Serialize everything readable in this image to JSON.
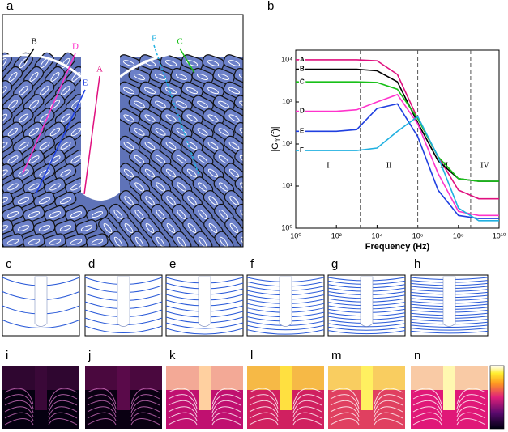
{
  "panel_labels": [
    "a",
    "b",
    "c",
    "d",
    "e",
    "f",
    "g",
    "h",
    "i",
    "j",
    "k",
    "l",
    "m",
    "n"
  ],
  "chart_data": {
    "type": "line",
    "x_label": "Frequency (Hz)",
    "y_label": {
      "main": "|G",
      "sub": "m",
      "rest": "(f)|"
    },
    "log_x": true,
    "log_y": true,
    "xlim": [
      1,
      10000000000
    ],
    "ylim": [
      1,
      17000
    ],
    "xticks": [
      {
        "value": 1,
        "label": "10⁰"
      },
      {
        "value": 100,
        "label": "10²"
      },
      {
        "value": 10000,
        "label": "10⁴"
      },
      {
        "value": 1000000,
        "label": "10⁶"
      },
      {
        "value": 100000000,
        "label": "10⁸"
      },
      {
        "value": 10000000000,
        "label": "10¹⁰"
      }
    ],
    "yticks": [
      {
        "value": 1,
        "label": "10⁰"
      },
      {
        "value": 10,
        "label": "10¹"
      },
      {
        "value": 100,
        "label": "10²"
      },
      {
        "value": 1000,
        "label": "10³"
      },
      {
        "value": 10000,
        "label": "10⁴"
      }
    ],
    "dividers": [
      1500,
      1000000,
      400000000
    ],
    "regions": [
      "I",
      "II",
      "III",
      "IV"
    ],
    "x": [
      1,
      100,
      1000,
      10000,
      100000,
      1000000,
      10000000,
      100000000,
      1000000000,
      10000000000
    ],
    "series": [
      {
        "name": "A",
        "color": "#e0107f",
        "values": [
          10000,
          10000,
          10000,
          9500,
          4500,
          400,
          50,
          8,
          5,
          5
        ]
      },
      {
        "name": "B",
        "color": "#000000",
        "values": [
          6000,
          6000,
          6000,
          5500,
          3000,
          320,
          40,
          15,
          13,
          13
        ]
      },
      {
        "name": "C",
        "color": "#18c018",
        "values": [
          3000,
          3000,
          3000,
          2900,
          2000,
          400,
          50,
          15,
          13,
          13
        ]
      },
      {
        "name": "D",
        "color": "#ff33cc",
        "values": [
          600,
          600,
          650,
          1000,
          1500,
          300,
          20,
          2.5,
          2,
          2
        ]
      },
      {
        "name": "E",
        "color": "#2040e0",
        "values": [
          200,
          200,
          220,
          700,
          900,
          150,
          8,
          2,
          1.7,
          1.7
        ]
      },
      {
        "name": "F",
        "color": "#20b0e0",
        "values": [
          70,
          70,
          70,
          80,
          200,
          450,
          50,
          3,
          1.5,
          1.5
        ]
      }
    ]
  }
}
